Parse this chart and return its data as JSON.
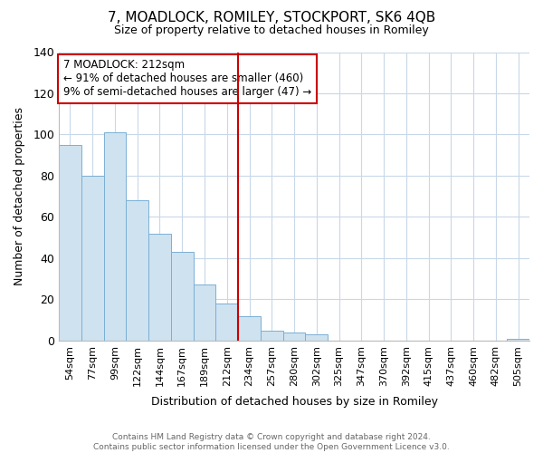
{
  "title": "7, MOADLOCK, ROMILEY, STOCKPORT, SK6 4QB",
  "subtitle": "Size of property relative to detached houses in Romiley",
  "xlabel": "Distribution of detached houses by size in Romiley",
  "ylabel": "Number of detached properties",
  "bar_labels": [
    "54sqm",
    "77sqm",
    "99sqm",
    "122sqm",
    "144sqm",
    "167sqm",
    "189sqm",
    "212sqm",
    "234sqm",
    "257sqm",
    "280sqm",
    "302sqm",
    "325sqm",
    "347sqm",
    "370sqm",
    "392sqm",
    "415sqm",
    "437sqm",
    "460sqm",
    "482sqm",
    "505sqm"
  ],
  "bar_values": [
    95,
    80,
    101,
    68,
    52,
    43,
    27,
    18,
    12,
    5,
    4,
    3,
    0,
    0,
    0,
    0,
    0,
    0,
    0,
    0,
    1
  ],
  "bar_color": "#cfe2f0",
  "bar_edge_color": "#7bafd4",
  "vline_x": 7.5,
  "vline_color": "#cc0000",
  "ylim": [
    0,
    140
  ],
  "yticks": [
    0,
    20,
    40,
    60,
    80,
    100,
    120,
    140
  ],
  "annotation_title": "7 MOADLOCK: 212sqm",
  "annotation_line1": "← 91% of detached houses are smaller (460)",
  "annotation_line2": "9% of semi-detached houses are larger (47) →",
  "footer_line1": "Contains HM Land Registry data © Crown copyright and database right 2024.",
  "footer_line2": "Contains public sector information licensed under the Open Government Licence v3.0.",
  "background_color": "#ffffff",
  "grid_color": "#c8d8e8"
}
